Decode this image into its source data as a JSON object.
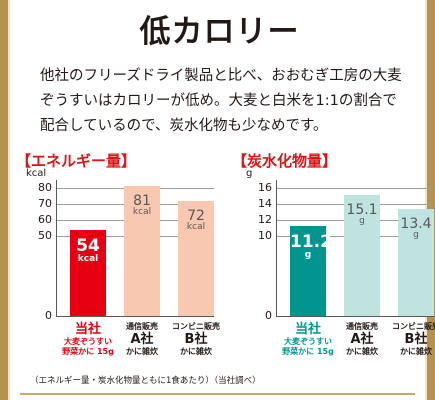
{
  "colors": {
    "frame": "#b5924f",
    "title": "#231815",
    "section_header": "#d71718",
    "cal_own_bar": "#e60012",
    "cal_other_bar": "#f8c8b1",
    "carb_own_bar": "#00968f",
    "carb_other_bar": "#bfe3df"
  },
  "title": "低カロリー",
  "intro": "他社のフリーズドライ製品と比べ、おおむぎ工房の大麦\nぞうすいはカロリーが低め。大麦と白米を1:1の割合で\n配合しているので、炭水化物も少なめです。",
  "footnote": "（エネルギー量・炭水化物量ともに1食あたり）（当社調べ）",
  "chart_data": [
    {
      "type": "bar",
      "title": "【エネルギー量】",
      "ylabel": "kcal",
      "unit": "kcal",
      "ylim": [
        0,
        85
      ],
      "yticks": [
        0,
        50,
        60,
        70,
        80
      ],
      "categories": [
        "当社",
        "通信販売 A社",
        "コンビニ販売 B社"
      ],
      "values": [
        54,
        81,
        72
      ],
      "value_labels": [
        "54",
        "81",
        "72"
      ],
      "category_labels": [
        {
          "top": "",
          "main": "当社",
          "sub1": "大麦ぞうすい",
          "sub2": "野菜かに 15g"
        },
        {
          "top": "通信販売",
          "main": "A社",
          "sub1": "かに雑炊",
          "sub2": ""
        },
        {
          "top": "コンビニ販売",
          "main": "B社",
          "sub1": "かに雑炊",
          "sub2": ""
        }
      ]
    },
    {
      "type": "bar",
      "title": "【炭水化物量】",
      "ylabel": "g",
      "unit": "g",
      "ylim": [
        0,
        17
      ],
      "yticks": [
        0,
        10,
        12,
        14,
        16
      ],
      "categories": [
        "当社",
        "通信販売 A社",
        "コンビニ販売 B社"
      ],
      "values": [
        11.2,
        15.1,
        13.4
      ],
      "value_labels": [
        "11.2",
        "15.1",
        "13.4"
      ],
      "category_labels": [
        {
          "top": "",
          "main": "当社",
          "sub1": "大麦ぞうすい",
          "sub2": "野菜かに 15g"
        },
        {
          "top": "通信販売",
          "main": "A社",
          "sub1": "かに雑炊",
          "sub2": ""
        },
        {
          "top": "コンビニ販売",
          "main": "B社",
          "sub1": "かに雑炊",
          "sub2": ""
        }
      ]
    }
  ]
}
